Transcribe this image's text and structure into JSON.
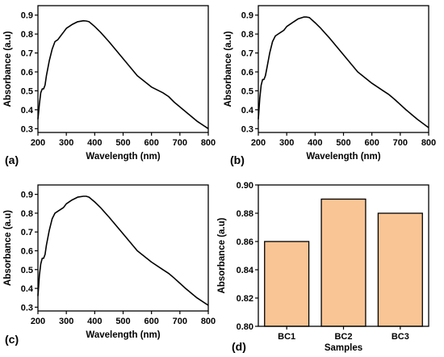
{
  "chart_data": [
    {
      "type": "line",
      "panel_label": "(a)",
      "xlabel": "Wavelength (nm)",
      "ylabel": "Absorbance (a.u)",
      "xlim": [
        200,
        800
      ],
      "ylim": [
        0.28,
        0.95
      ],
      "xticks": [
        "200",
        "300",
        "400",
        "500",
        "600",
        "700",
        "800"
      ],
      "yticks": [
        "0.3",
        "0.4",
        "0.5",
        "0.6",
        "0.7",
        "0.8",
        "0.9"
      ],
      "series": [
        {
          "x": [
            200,
            205,
            210,
            215,
            220,
            225,
            230,
            240,
            250,
            260,
            270,
            280,
            290,
            300,
            320,
            340,
            360,
            370,
            380,
            400,
            420,
            450,
            500,
            550,
            600,
            640,
            660,
            680,
            720,
            760,
            800
          ],
          "values": [
            0.35,
            0.43,
            0.49,
            0.51,
            0.51,
            0.53,
            0.58,
            0.66,
            0.72,
            0.76,
            0.77,
            0.79,
            0.81,
            0.83,
            0.85,
            0.865,
            0.87,
            0.869,
            0.865,
            0.84,
            0.81,
            0.76,
            0.67,
            0.58,
            0.52,
            0.49,
            0.47,
            0.44,
            0.39,
            0.34,
            0.3
          ]
        }
      ]
    },
    {
      "type": "line",
      "panel_label": "(b)",
      "xlabel": "Wavelength (nm)",
      "ylabel": "Absorbance (a.u)",
      "xlim": [
        200,
        800
      ],
      "ylim": [
        0.28,
        0.95
      ],
      "xticks": [
        "200",
        "300",
        "400",
        "500",
        "600",
        "700",
        "800"
      ],
      "yticks": [
        "0.3",
        "0.4",
        "0.5",
        "0.6",
        "0.7",
        "0.8",
        "0.9"
      ],
      "series": [
        {
          "x": [
            200,
            205,
            210,
            215,
            220,
            225,
            230,
            240,
            250,
            260,
            270,
            280,
            290,
            300,
            320,
            340,
            360,
            370,
            380,
            400,
            420,
            450,
            500,
            550,
            600,
            640,
            660,
            680,
            720,
            760,
            800
          ],
          "values": [
            0.35,
            0.46,
            0.53,
            0.56,
            0.56,
            0.58,
            0.62,
            0.7,
            0.76,
            0.79,
            0.8,
            0.81,
            0.82,
            0.84,
            0.86,
            0.88,
            0.89,
            0.89,
            0.887,
            0.86,
            0.83,
            0.78,
            0.69,
            0.6,
            0.54,
            0.5,
            0.48,
            0.455,
            0.4,
            0.35,
            0.305
          ]
        }
      ]
    },
    {
      "type": "line",
      "panel_label": "(c)",
      "xlabel": "Wavelength (nm)",
      "ylabel": "Absorbance (a.u)",
      "xlim": [
        200,
        800
      ],
      "ylim": [
        0.28,
        0.95
      ],
      "xticks": [
        "200",
        "300",
        "400",
        "500",
        "600",
        "700",
        "800"
      ],
      "yticks": [
        "0.3",
        "0.4",
        "0.5",
        "0.6",
        "0.7",
        "0.8",
        "0.9"
      ],
      "series": [
        {
          "x": [
            200,
            205,
            210,
            215,
            220,
            225,
            230,
            240,
            250,
            260,
            270,
            280,
            290,
            300,
            320,
            340,
            360,
            370,
            380,
            400,
            420,
            450,
            500,
            550,
            600,
            640,
            660,
            680,
            720,
            760,
            800
          ],
          "values": [
            0.36,
            0.47,
            0.53,
            0.56,
            0.56,
            0.58,
            0.63,
            0.71,
            0.77,
            0.8,
            0.81,
            0.82,
            0.83,
            0.85,
            0.87,
            0.885,
            0.89,
            0.89,
            0.885,
            0.86,
            0.83,
            0.78,
            0.69,
            0.6,
            0.54,
            0.5,
            0.48,
            0.455,
            0.4,
            0.35,
            0.31
          ]
        }
      ]
    },
    {
      "type": "bar",
      "panel_label": "(d)",
      "xlabel": "Samples",
      "ylabel": "Absorbance (a.u)",
      "categories": [
        "BC1",
        "BC2",
        "BC3"
      ],
      "values": [
        0.86,
        0.89,
        0.88
      ],
      "ylim": [
        0.8,
        0.9
      ],
      "yticks": [
        "0.80",
        "0.82",
        "0.84",
        "0.86",
        "0.88",
        "0.90"
      ],
      "bar_color": "#fac594"
    }
  ]
}
